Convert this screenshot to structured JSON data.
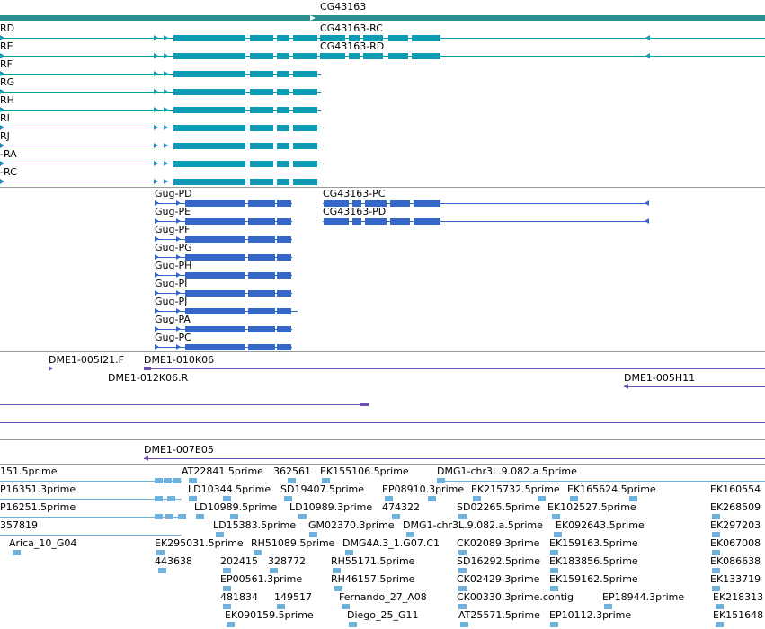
{
  "colors": {
    "gene_header": "#2a8f8f",
    "transcript_cyan": "#0c9bb5",
    "transcript_blue": "#3568c6",
    "bac_purple": "#6c4fb3",
    "est_light_blue": "#6fb1dd",
    "divider": "#9a9a9a"
  },
  "track1": {
    "gene_label": "CG43163",
    "left_labels": [
      "RD",
      "RE",
      "RF",
      "RG",
      "RH",
      "RI",
      "RJ",
      "-RA",
      "-RC"
    ],
    "cg_labels": [
      "CG43163-RC",
      "CG43163-RD"
    ]
  },
  "track2": {
    "gug_labels": [
      "Gug-PD",
      "Gug-PE",
      "Gug-PF",
      "Gug-PG",
      "Gug-PH",
      "Gug-PI",
      "Gug-PJ",
      "Gug-PA",
      "Gug-PC"
    ],
    "cg_labels": [
      "CG43163-PC",
      "CG43163-PD"
    ]
  },
  "track3": {
    "labels": [
      "DME1-005I21.F",
      "DME1-010K06",
      "DME1-012K06.R",
      "DME1-005H11"
    ]
  },
  "track4": {
    "label": "DME1-007E05"
  },
  "track5": {
    "labels": [
      "151.5prime",
      "AT22841.5prime",
      "362561",
      "EK155106.5prime",
      "DMG1-chr3L.9.082.a.5prime",
      "P16351.3prime",
      "LD10344.5prime",
      "SD19407.5prime",
      "EP08910.3prime",
      "EK215732.5prime",
      "EK165624.5prime",
      "EK160554",
      "P16251.5prime",
      "LD10989.5prime",
      "LD10989.3prime",
      "474322",
      "SD02265.5prime",
      "EK102527.5prime",
      "EK268509",
      "357819",
      "LD15383.5prime",
      "GM02370.3prime",
      "DMG1-chr3L.9.082.a.5prime",
      "EK092643.5prime",
      "EK297203",
      "Arica_10_G04",
      "EK295031.5prime",
      "RH51089.5prime",
      "DMG4A.3_1.G07.C1",
      "CK02089.3prime",
      "EK159163.5prime",
      "EK067008",
      "443638",
      "202415",
      "328772",
      "RH55171.5prime",
      "SD16292.5prime",
      "EK183856.5prime",
      "EK086638",
      "EP00561.3prime",
      "RH46157.5prime",
      "CK02429.3prime",
      "EK159162.5prime",
      "EK133719",
      "481834",
      "149517",
      "Fernando_27_A08",
      "CK00330.3prime.contig",
      "EP18944.3prime",
      "EK218313",
      "EK090159.5prime",
      "Diego_25_G11",
      "AT25571.5prime",
      "EP10112.3prime",
      "EK151648"
    ]
  }
}
